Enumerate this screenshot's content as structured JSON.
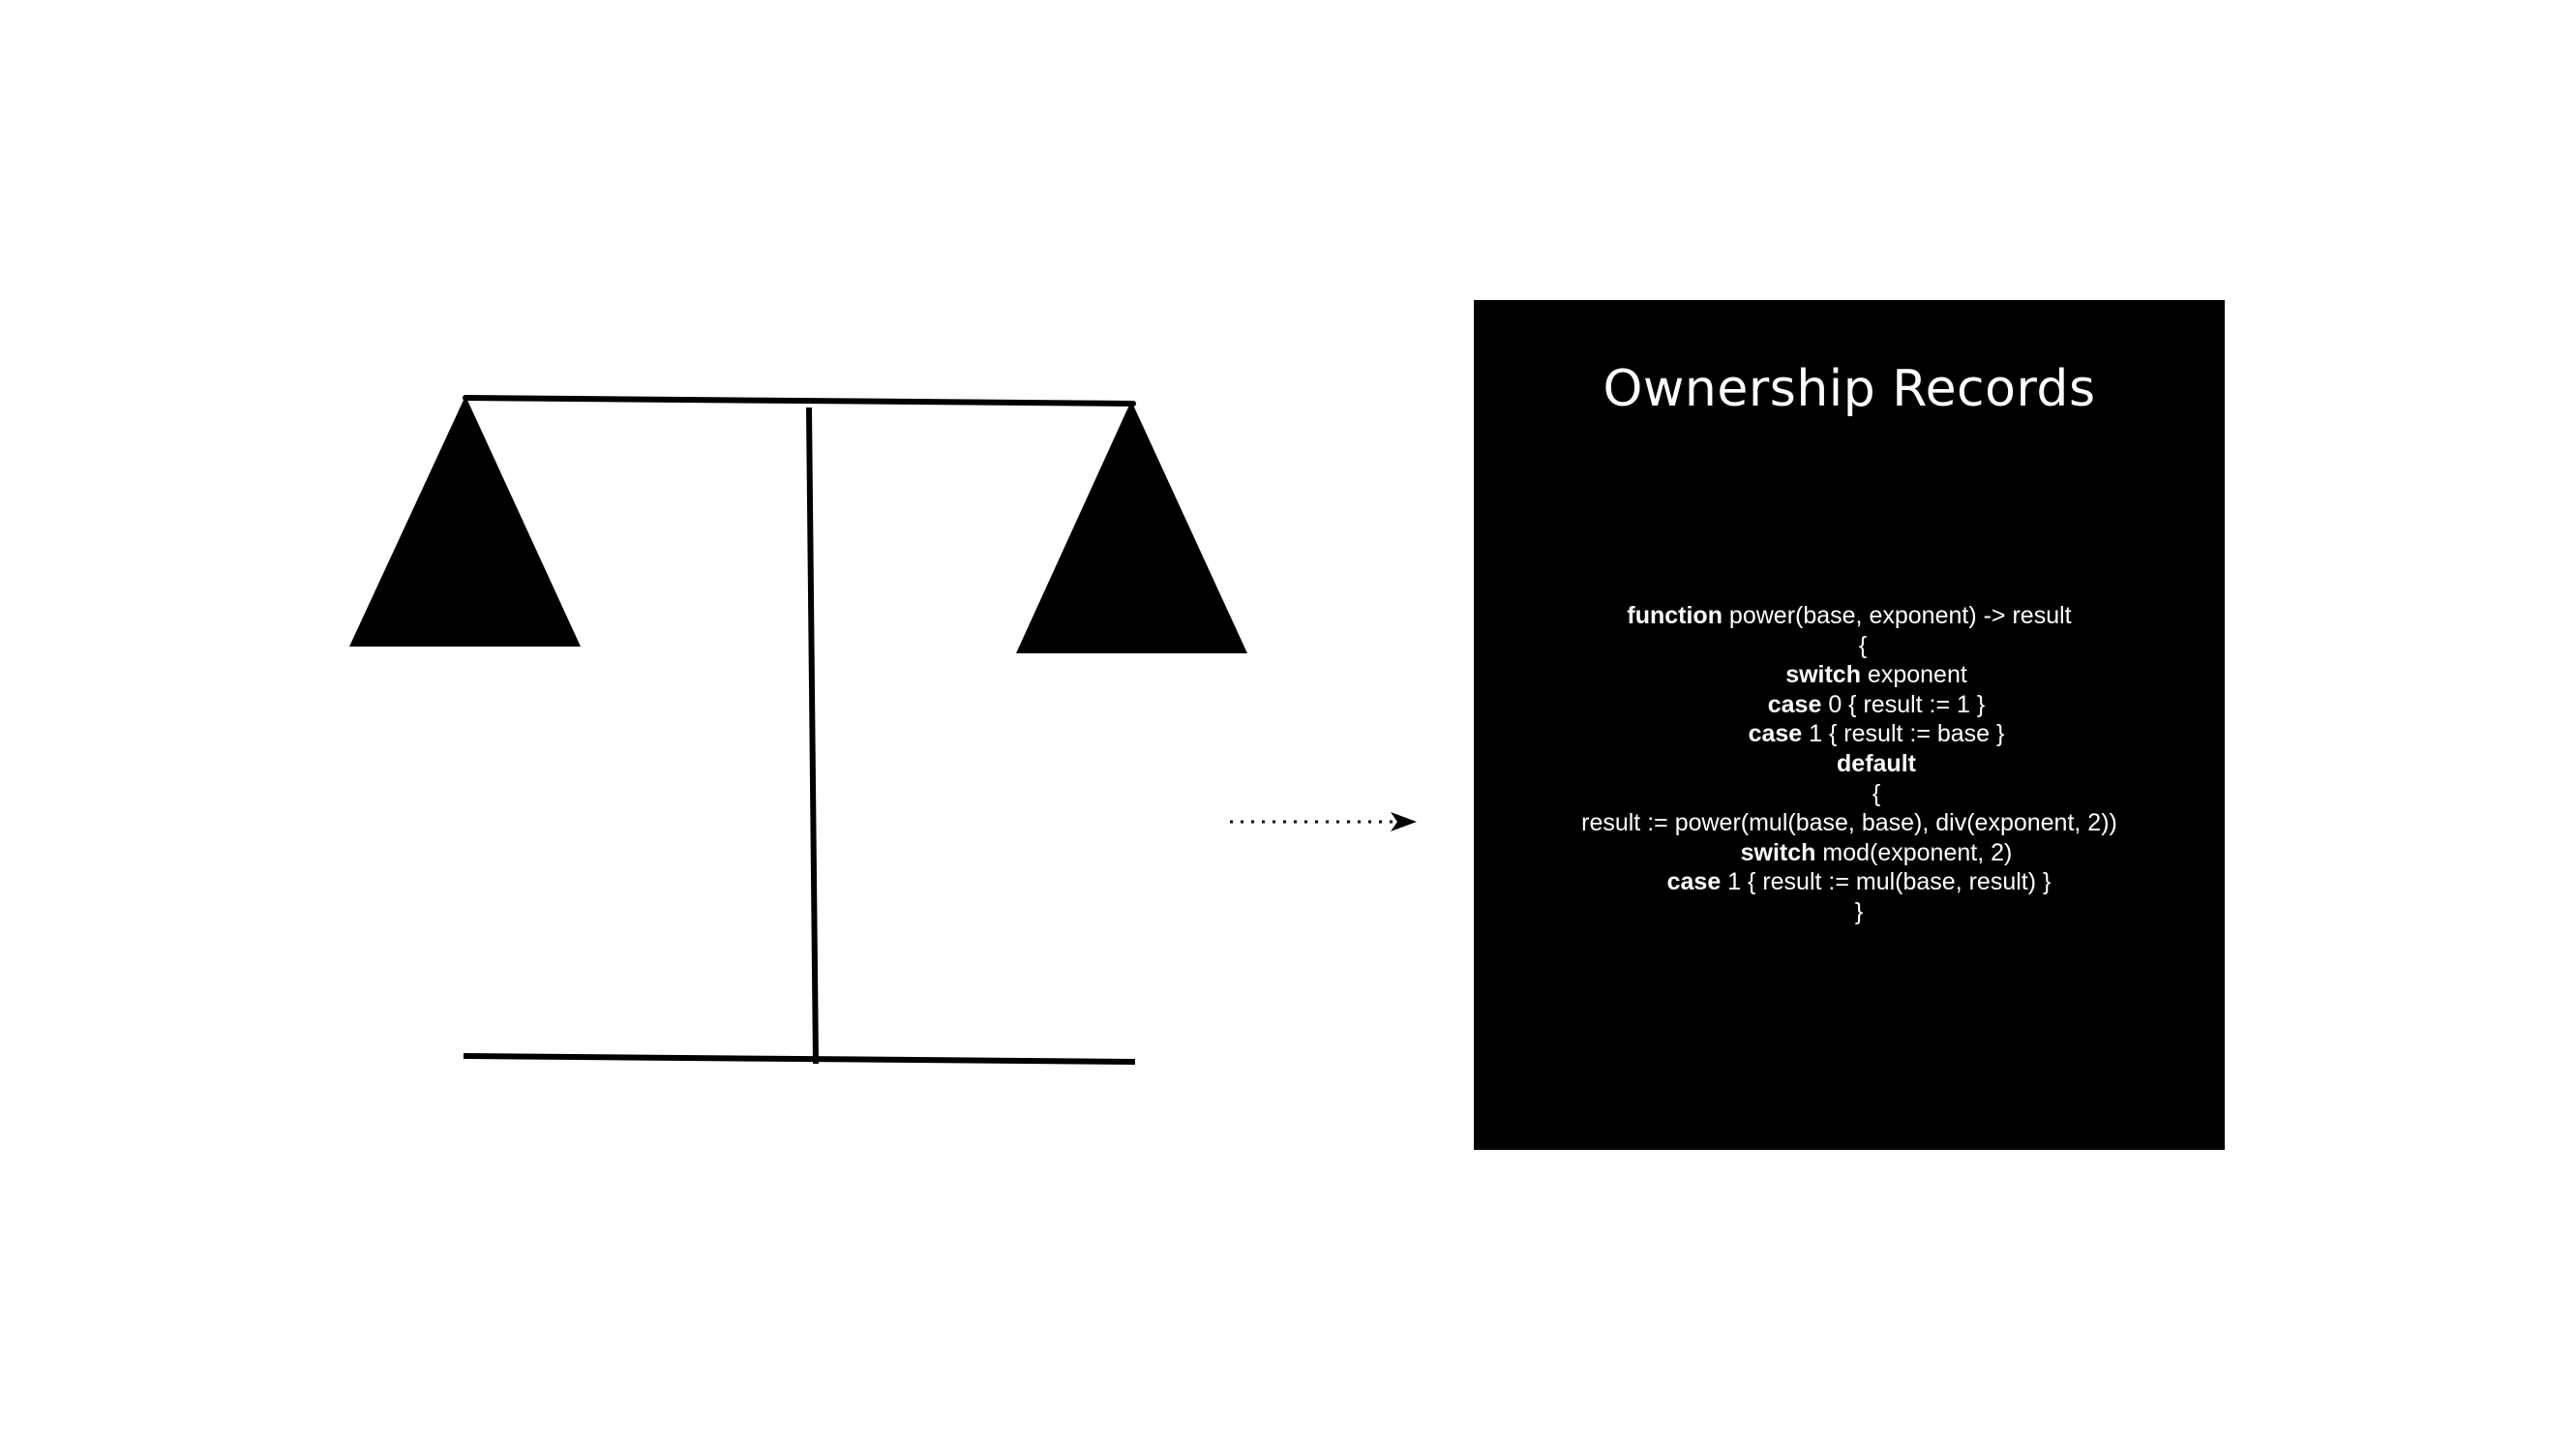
{
  "panel": {
    "title": "Ownership Records",
    "background_color": "#000000",
    "text_color": "#ffffff"
  },
  "code": {
    "lines": [
      {
        "keyword": "function",
        "text": " power(base, exponent) -> result"
      },
      {
        "keyword": "",
        "text": "{"
      },
      {
        "keyword": "switch",
        "text": " exponent"
      },
      {
        "keyword": "case",
        "text": " 0 { result := 1 }"
      },
      {
        "keyword": "case",
        "text": " 1 { result := base }"
      },
      {
        "keyword": "default",
        "text": ""
      },
      {
        "keyword": "",
        "text": "{"
      },
      {
        "keyword": "",
        "text": "result := power(mul(base, base), div(exponent, 2))"
      },
      {
        "keyword": "switch",
        "text": " mod(exponent, 2)"
      },
      {
        "keyword": "case",
        "text": " 1 { result := mul(base, result) }"
      },
      {
        "keyword": "",
        "text": "}"
      }
    ]
  },
  "scale_icon": {
    "icon": "balance-scale-icon",
    "color": "#000000"
  },
  "connector": {
    "icon": "dotted-arrow-right-icon",
    "style": "dotted"
  }
}
